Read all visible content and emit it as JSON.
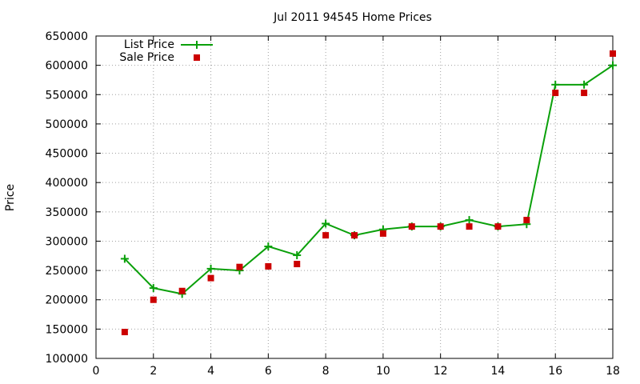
{
  "chart_data": {
    "type": "line",
    "title": "Jul 2011 94545 Home Prices",
    "xlabel": "",
    "ylabel": "Price",
    "xlim": [
      0,
      18
    ],
    "ylim": [
      100000,
      650000
    ],
    "x_ticks": [
      0,
      2,
      4,
      6,
      8,
      10,
      12,
      14,
      16,
      18
    ],
    "y_ticks": [
      100000,
      150000,
      200000,
      250000,
      300000,
      350000,
      400000,
      450000,
      500000,
      550000,
      600000,
      650000
    ],
    "x_tick_labels": [
      "0",
      "2",
      "4",
      "6",
      "8",
      "10",
      "12",
      "14",
      "16",
      "18"
    ],
    "y_tick_labels": [
      "100000",
      "150000",
      "200000",
      "250000",
      "300000",
      "350000",
      "400000",
      "450000",
      "500000",
      "550000",
      "600000",
      "650000"
    ],
    "grid": true,
    "legend_position": "top-left",
    "series": [
      {
        "name": "List Price",
        "style": "line-with-plus-markers",
        "color": "#0aa00a",
        "x": [
          1,
          2,
          3,
          4,
          5,
          6,
          7,
          8,
          9,
          10,
          11,
          12,
          13,
          14,
          15,
          16,
          17,
          18
        ],
        "y": [
          270000,
          220000,
          210000,
          253000,
          250000,
          291000,
          276000,
          330000,
          310000,
          320000,
          325000,
          325000,
          336000,
          325000,
          329000,
          567000,
          567000,
          600000
        ]
      },
      {
        "name": "Sale Price",
        "style": "square-markers",
        "color": "#cc0000",
        "x": [
          1,
          2,
          3,
          4,
          5,
          6,
          7,
          8,
          9,
          10,
          11,
          12,
          13,
          14,
          15,
          16,
          17,
          18
        ],
        "y": [
          145000,
          200000,
          215000,
          237000,
          256000,
          257000,
          261000,
          310000,
          310000,
          313000,
          325000,
          325000,
          325000,
          325000,
          336000,
          553000,
          553000,
          620000
        ]
      }
    ]
  }
}
